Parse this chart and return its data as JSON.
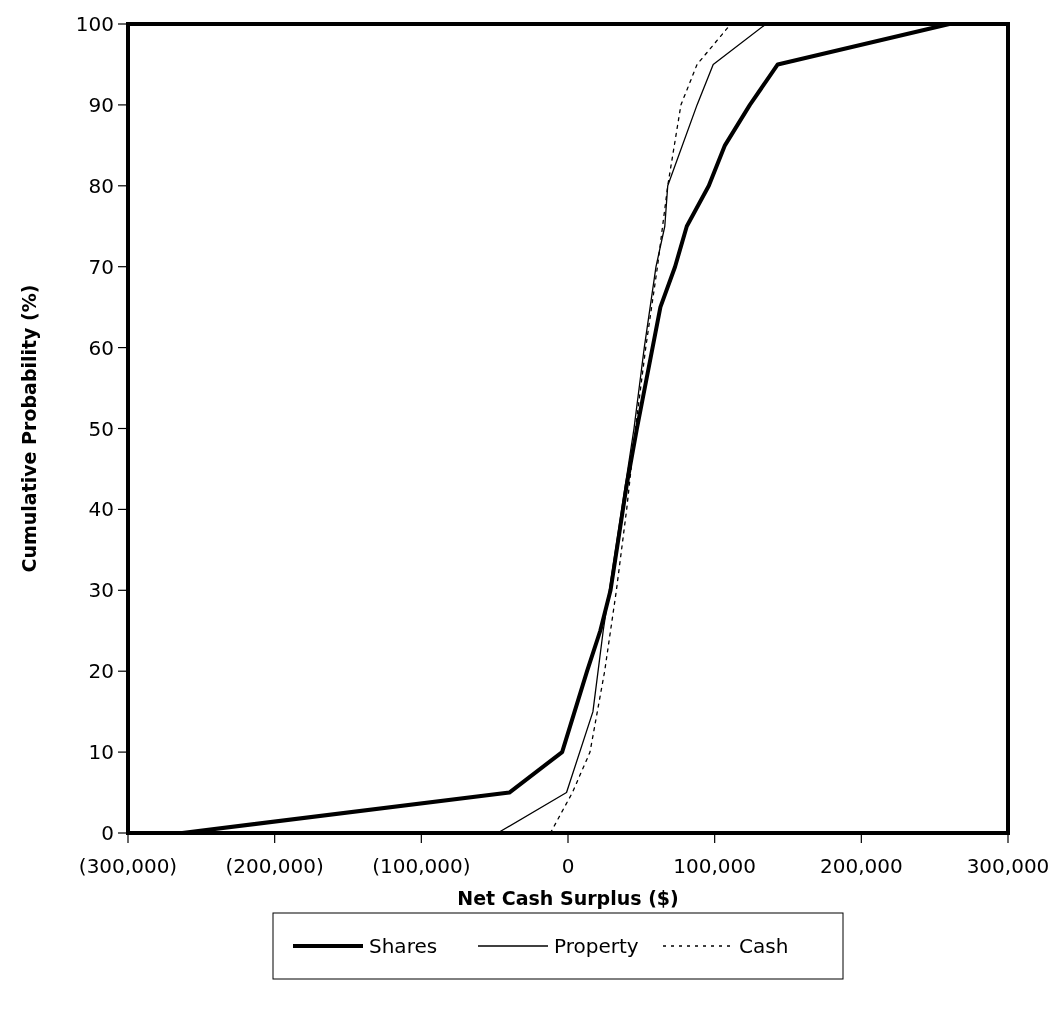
{
  "chart_data": {
    "type": "line",
    "xlabel": "Net Cash Surplus ($)",
    "ylabel": "Cumulative Probability (%)",
    "xlim": [
      -300000,
      300000
    ],
    "ylim": [
      0,
      100
    ],
    "xticks": [
      {
        "value": -300000,
        "label": "(300,000)"
      },
      {
        "value": -200000,
        "label": "(200,000)"
      },
      {
        "value": -100000,
        "label": "(100,000)"
      },
      0,
      {
        "value": 100000,
        "label": "100,000"
      },
      {
        "value": 200000,
        "label": "200,000"
      },
      {
        "value": 300000,
        "label": "300,000"
      }
    ],
    "yticks": [
      0,
      10,
      20,
      30,
      40,
      50,
      60,
      70,
      80,
      90,
      100
    ],
    "grid": false,
    "legend": "bottom",
    "series": [
      {
        "name": "Shares",
        "color": "#000000",
        "line_style": "solid",
        "x": [
          -263000,
          -40000,
          -4000,
          13000,
          22000,
          29000,
          40000,
          47000,
          63000,
          73000,
          81000,
          96000,
          107000,
          124000,
          143000,
          260000
        ],
        "values": [
          0,
          5,
          10,
          20,
          25,
          30,
          43,
          50,
          65,
          70,
          75,
          80,
          85,
          90,
          95,
          100
        ]
      },
      {
        "name": "Property",
        "color": "#000000",
        "line_style": "solid",
        "x": [
          -48000,
          -1000,
          17000,
          24000,
          45000,
          52000,
          60000,
          66000,
          68000,
          88000,
          99000,
          135000
        ],
        "values": [
          0,
          5,
          15,
          25,
          50,
          60,
          70,
          75,
          80,
          90,
          95,
          100
        ]
      },
      {
        "name": "Cash",
        "color": "#000000",
        "line_style": "dotted",
        "x": [
          -12000,
          3000,
          15000,
          25000,
          33000,
          40000,
          46000,
          53000,
          61000,
          68000,
          77000,
          88000,
          111000
        ],
        "values": [
          0,
          5,
          10,
          20,
          30,
          40,
          50,
          60,
          70,
          80,
          90,
          95,
          100
        ]
      }
    ]
  }
}
